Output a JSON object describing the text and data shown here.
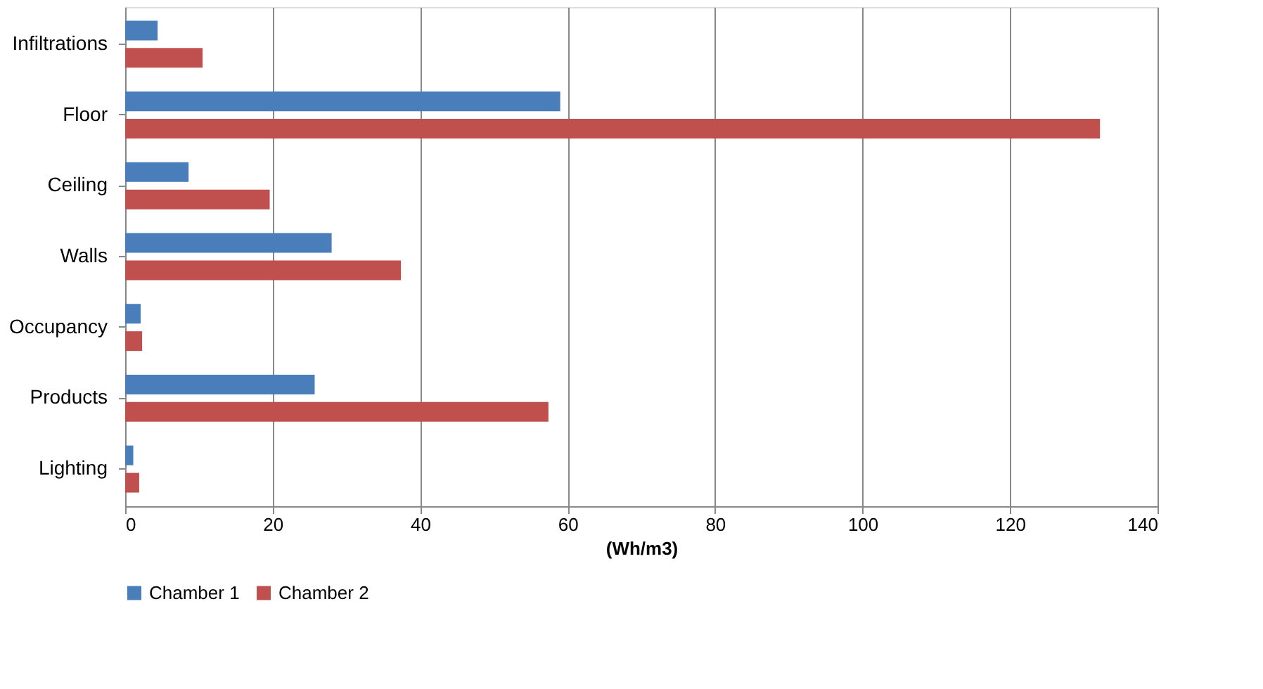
{
  "chart_data": {
    "type": "bar",
    "orientation": "horizontal",
    "xlabel": "(Wh/m3)",
    "categories": [
      "Infiltrations",
      "Floor",
      "Ceiling",
      "Walls",
      "Occupancy",
      "Products",
      "Lighting"
    ],
    "series": [
      {
        "name": "Chamber 1",
        "color": "#4a7ebb",
        "values": [
          4.4,
          59,
          8.6,
          28,
          2.1,
          25.7,
          1.1
        ]
      },
      {
        "name": "Chamber 2",
        "color": "#c0504d",
        "values": [
          10.5,
          132.2,
          19.6,
          37.4,
          2.3,
          57.4,
          1.9
        ]
      }
    ],
    "xlim": [
      0,
      140
    ],
    "xticks": [
      0,
      20,
      40,
      60,
      80,
      100,
      120,
      140
    ],
    "grid": "x",
    "legend": "bottom"
  }
}
